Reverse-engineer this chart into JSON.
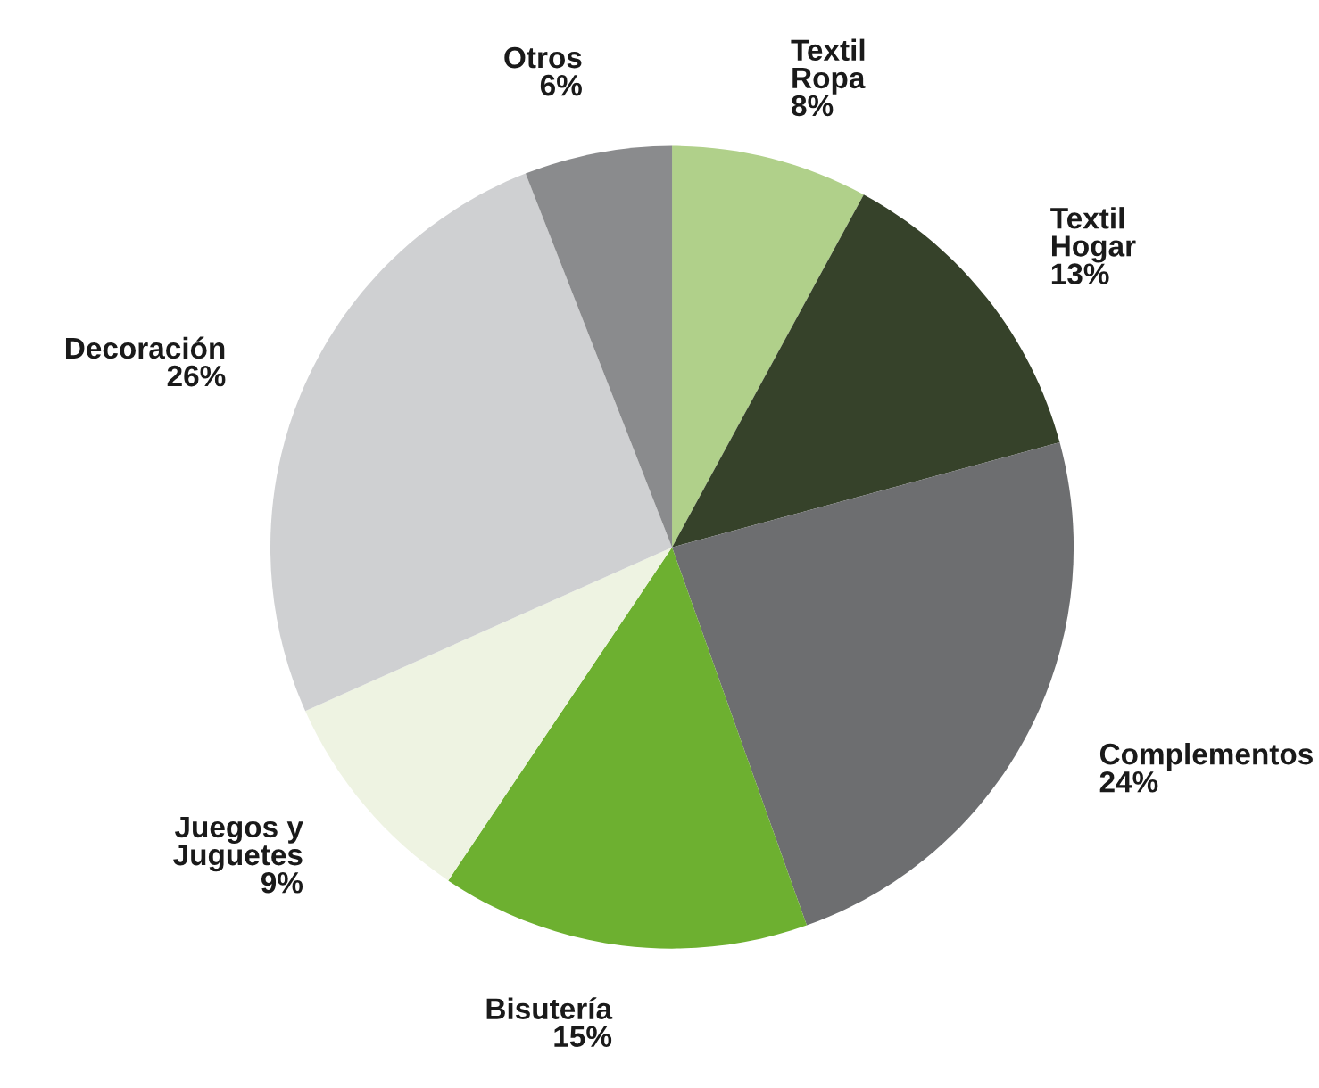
{
  "chart_data": {
    "type": "pie",
    "categories": [
      "Textil\nRopa",
      "Textil\nHogar",
      "Complementos",
      "Bisutería",
      "Juegos y\nJuguetes",
      "Decoración",
      "Otros"
    ],
    "values": [
      8,
      13,
      24,
      15,
      9,
      26,
      6
    ],
    "value_labels": [
      "8%",
      "13%",
      "24%",
      "15%",
      "9%",
      "26%",
      "6%"
    ],
    "colors": [
      "#b0d08a",
      "#36422a",
      "#6d6e70",
      "#6db030",
      "#eef3e2",
      "#cfd0d2",
      "#8a8b8d"
    ],
    "legend": false
  }
}
